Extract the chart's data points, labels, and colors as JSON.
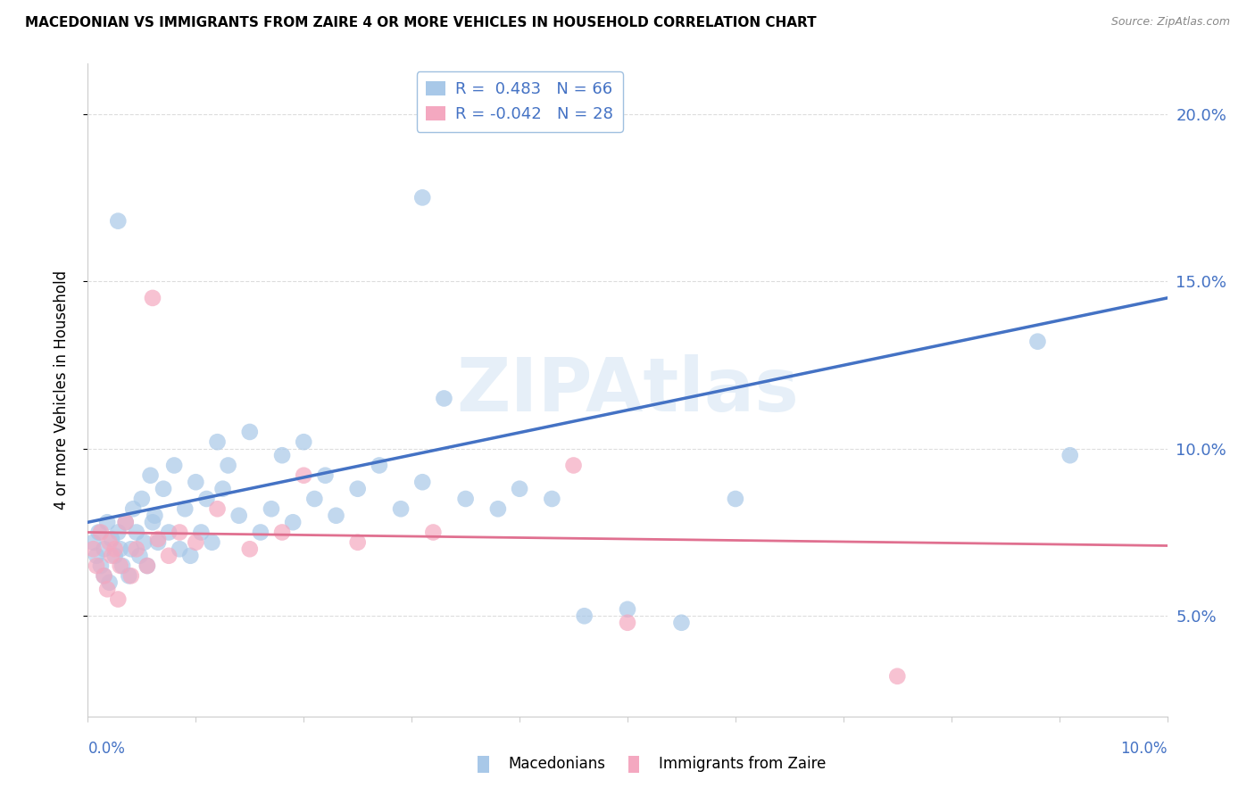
{
  "title": "MACEDONIAN VS IMMIGRANTS FROM ZAIRE 4 OR MORE VEHICLES IN HOUSEHOLD CORRELATION CHART",
  "source": "Source: ZipAtlas.com",
  "ylabel": "4 or more Vehicles in Household",
  "xmin": 0.0,
  "xmax": 10.0,
  "ymin": 2.0,
  "ymax": 21.5,
  "right_yticks": [
    5.0,
    10.0,
    15.0,
    20.0
  ],
  "macedonians_color": "#a8c8e8",
  "zaire_color": "#f4a8c0",
  "macedonians_line_color": "#4472c4",
  "zaire_line_color": "#e07090",
  "mac_line_x0": 0.0,
  "mac_line_y0": 7.8,
  "mac_line_x1": 10.0,
  "mac_line_y1": 14.5,
  "zaire_line_x0": 0.0,
  "zaire_line_y0": 7.5,
  "zaire_line_x1": 10.0,
  "zaire_line_y1": 7.1,
  "legend1_label": "R =  0.483   N = 66",
  "legend2_label": "R = -0.042   N = 28",
  "watermark": "ZIPAtlas",
  "mac_x": [
    0.05,
    0.08,
    0.1,
    0.12,
    0.15,
    0.15,
    0.18,
    0.2,
    0.22,
    0.25,
    0.28,
    0.3,
    0.32,
    0.35,
    0.38,
    0.4,
    0.42,
    0.45,
    0.48,
    0.5,
    0.52,
    0.55,
    0.58,
    0.6,
    0.62,
    0.65,
    0.7,
    0.75,
    0.8,
    0.85,
    0.9,
    0.95,
    1.0,
    1.05,
    1.1,
    1.15,
    1.2,
    1.25,
    1.3,
    1.4,
    1.5,
    1.6,
    1.7,
    1.8,
    1.9,
    2.0,
    2.1,
    2.2,
    2.3,
    2.5,
    2.7,
    2.9,
    3.1,
    3.3,
    3.5,
    3.8,
    4.0,
    4.3,
    4.6,
    5.0,
    5.5,
    6.0,
    8.8,
    9.1,
    0.28,
    3.1
  ],
  "mac_y": [
    7.2,
    6.8,
    7.5,
    6.5,
    7.0,
    6.2,
    7.8,
    6.0,
    7.3,
    6.8,
    7.5,
    7.0,
    6.5,
    7.8,
    6.2,
    7.0,
    8.2,
    7.5,
    6.8,
    8.5,
    7.2,
    6.5,
    9.2,
    7.8,
    8.0,
    7.2,
    8.8,
    7.5,
    9.5,
    7.0,
    8.2,
    6.8,
    9.0,
    7.5,
    8.5,
    7.2,
    10.2,
    8.8,
    9.5,
    8.0,
    10.5,
    7.5,
    8.2,
    9.8,
    7.8,
    10.2,
    8.5,
    9.2,
    8.0,
    8.8,
    9.5,
    8.2,
    9.0,
    11.5,
    8.5,
    8.2,
    8.8,
    8.5,
    5.0,
    5.2,
    4.8,
    8.5,
    13.2,
    9.8,
    16.8,
    17.5
  ],
  "zaire_x": [
    0.05,
    0.08,
    0.12,
    0.15,
    0.18,
    0.2,
    0.22,
    0.25,
    0.28,
    0.3,
    0.35,
    0.4,
    0.45,
    0.55,
    0.65,
    0.75,
    0.85,
    1.0,
    1.2,
    1.5,
    1.8,
    2.0,
    2.5,
    3.2,
    4.5,
    5.0,
    7.5,
    0.6
  ],
  "zaire_y": [
    7.0,
    6.5,
    7.5,
    6.2,
    5.8,
    7.2,
    6.8,
    7.0,
    5.5,
    6.5,
    7.8,
    6.2,
    7.0,
    6.5,
    7.3,
    6.8,
    7.5,
    7.2,
    8.2,
    7.0,
    7.5,
    9.2,
    7.2,
    7.5,
    9.5,
    4.8,
    3.2,
    14.5
  ]
}
